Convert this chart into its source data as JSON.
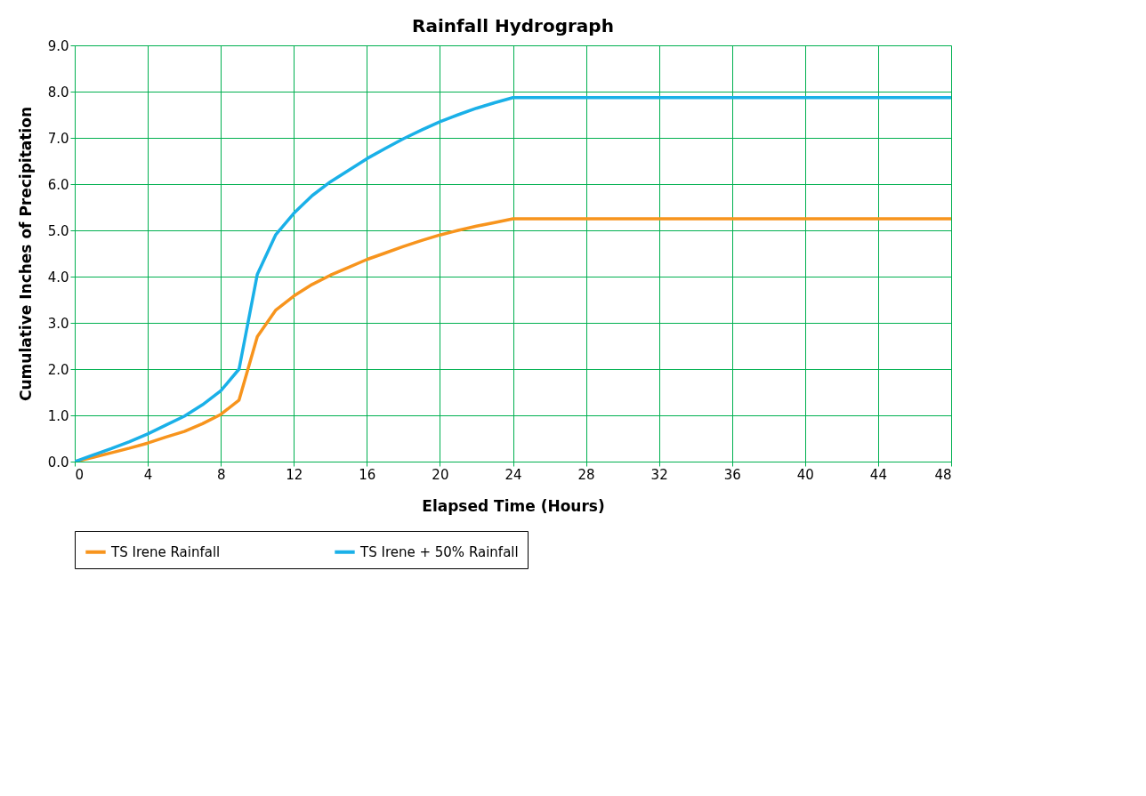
{
  "chart_data": {
    "type": "line",
    "title": "Rainfall Hydrograph",
    "xlabel": "Elapsed Time (Hours)",
    "ylabel": "Cumulative Inches of Precipitation",
    "x": [
      0,
      1,
      2,
      3,
      4,
      5,
      6,
      7,
      8,
      9,
      10,
      11,
      12,
      13,
      14,
      15,
      16,
      17,
      18,
      19,
      20,
      21,
      22,
      23,
      24,
      48
    ],
    "series": [
      {
        "name": "TS Irene Rainfall",
        "color": "#f7941d",
        "values": [
          0,
          0.09,
          0.19,
          0.29,
          0.4,
          0.53,
          0.65,
          0.82,
          1.02,
          1.33,
          2.7,
          3.27,
          3.58,
          3.83,
          4.03,
          4.2,
          4.37,
          4.51,
          4.65,
          4.78,
          4.9,
          5.0,
          5.09,
          5.17,
          5.25,
          5.25
        ]
      },
      {
        "name": "TS Irene + 50% Rainfall",
        "color": "#1ab0e8",
        "values": [
          0,
          0.14,
          0.28,
          0.43,
          0.6,
          0.79,
          0.98,
          1.23,
          1.53,
          2.0,
          4.05,
          4.9,
          5.37,
          5.75,
          6.05,
          6.3,
          6.55,
          6.77,
          6.98,
          7.17,
          7.35,
          7.5,
          7.64,
          7.76,
          7.87,
          7.87
        ]
      }
    ],
    "xlim": [
      0,
      48
    ],
    "xticks": [
      0,
      4,
      8,
      12,
      16,
      20,
      24,
      28,
      32,
      36,
      40,
      44,
      48
    ],
    "ylim": [
      0,
      9
    ],
    "yticks": [
      {
        "value": 0,
        "label": "0.0"
      },
      {
        "value": 1,
        "label": "1.0"
      },
      {
        "value": 2,
        "label": "2.0"
      },
      {
        "value": 3,
        "label": "3.0"
      },
      {
        "value": 4,
        "label": "4.0"
      },
      {
        "value": 5,
        "label": "5.0"
      },
      {
        "value": 6,
        "label": "6.0"
      },
      {
        "value": 7,
        "label": "7.0"
      },
      {
        "value": 8,
        "label": "8.0"
      },
      {
        "value": 9,
        "label": "9.0"
      }
    ],
    "grid": true,
    "legend": "bottom",
    "marker": "none",
    "line_style": "solid"
  }
}
